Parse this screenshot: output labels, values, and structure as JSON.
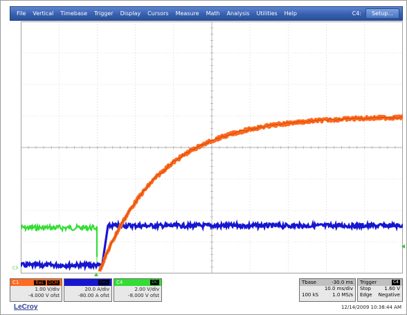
{
  "menu": {
    "items": [
      "File",
      "Vertical",
      "Timebase",
      "Trigger",
      "Display",
      "Cursors",
      "Measure",
      "Math",
      "Analysis",
      "Utilities",
      "Help"
    ],
    "channel_label": "C4:",
    "setup_label": "Setup..."
  },
  "markers": {
    "c3": "C3"
  },
  "channels": [
    {
      "id": "C1",
      "tags": [
        "BwL",
        "DCM"
      ],
      "vdiv": "1.00 V/div",
      "offset": "-4.000 V ofst",
      "color": "#ff6a1f"
    },
    {
      "id": "",
      "tags": [
        "BwL"
      ],
      "vdiv": "20.0 A/div",
      "offset": "-80.00 A ofst",
      "color": "#1616d0"
    },
    {
      "id": "C4",
      "tags": [
        "DC"
      ],
      "vdiv": "2.00 V/div",
      "offset": "-8.000 V ofst",
      "color": "#33dd33"
    }
  ],
  "timebase": {
    "title": "Tbase",
    "delay": "-30.0 ms",
    "tdiv": "10.0 ms/div",
    "samples": "100 kS",
    "rate": "1.0 MS/s"
  },
  "trigger": {
    "title": "Trigger",
    "badge": "C4",
    "mode": "Stop",
    "level": "1.60 V",
    "type": "Edge",
    "slope": "Negative"
  },
  "brand": {
    "logo": "LeCroy"
  },
  "timestamp": "12/14/2009 10:38:44 AM",
  "colors": {
    "menubar": "#3860b0",
    "trace_orange": "#ff6a1f",
    "trace_blue": "#1616d0",
    "trace_green": "#33dd33"
  }
}
